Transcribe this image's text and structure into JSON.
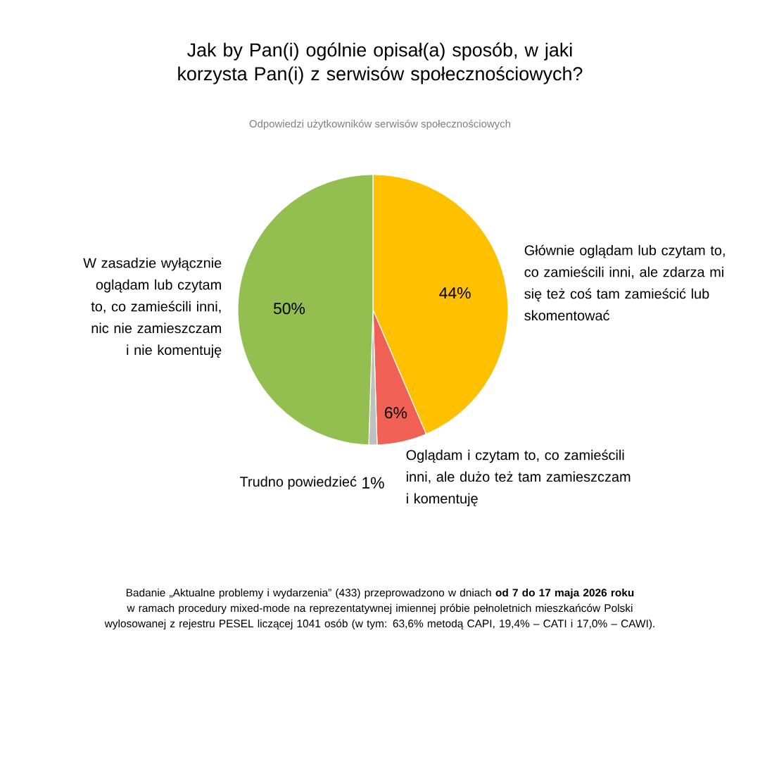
{
  "chart_data": {
    "type": "pie",
    "title": "Jak by Pan(i) ogólnie opisał(a) sposób, w jaki korzysta Pan(i) z serwisów społecznościowych?",
    "subtitle": "Odpowiedzi użytkowników serwisów społecznościowych",
    "categories": [
      "Głównie oglądam lub czytam to, co zamieścili inni, ale zdarza mi się też coś tam zamieścić lub skomentować",
      "Oglądam i czytam to, co zamieścili inni, ale dużo też tam zamieszczam i komentuję",
      "Trudno powiedzieć",
      "W zasadzie wyłącznie oglądam lub czytam to, co zamieścili inni, nic nie zamieszczam i nie komentuję"
    ],
    "values": [
      44,
      6,
      1,
      50
    ],
    "colors": [
      "#ffc000",
      "#f06054",
      "#bfbfbf",
      "#92bf50"
    ],
    "value_labels": [
      "44%",
      "6%",
      "1%",
      "50%"
    ],
    "annotations": [
      "Badanie „Aktualne problemy i wydarzenia” (433) przeprowadzono w dniach **od 7 do 17 maja 2026 roku** w ramach procedury mixed-mode na reprezentatywnej imiennej próbie pełnoletnich mieszkańców Polski wylosowanej z rejestru PESEL liczącej 1041 osób (w tym: 63,6% metodą CAPI, 19,4% – CATI i 17,0% – CAWI)."
    ]
  }
}
